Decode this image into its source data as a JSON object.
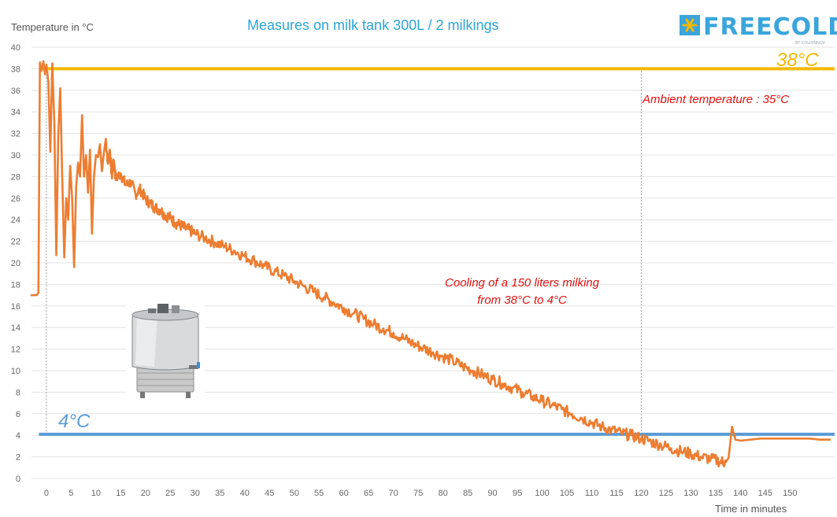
{
  "chart_data": {
    "type": "line",
    "title": "Measures on milk tank 300L / 2 milkings",
    "ylabel": "Temperature in °C",
    "xlabel": "Time in minutes",
    "xlim": [
      -3,
      159
    ],
    "ylim": [
      0,
      40
    ],
    "x_ticks": [
      0,
      5,
      10,
      15,
      20,
      25,
      30,
      35,
      40,
      45,
      50,
      55,
      60,
      65,
      70,
      75,
      80,
      85,
      90,
      95,
      100,
      105,
      110,
      115,
      120,
      125,
      130,
      135,
      140,
      145,
      150
    ],
    "y_ticks": [
      0,
      2,
      4,
      6,
      8,
      10,
      12,
      14,
      16,
      18,
      20,
      22,
      24,
      26,
      28,
      30,
      32,
      34,
      36,
      38,
      40
    ],
    "grid": "horizontal",
    "reference_lines": [
      {
        "label": "38°C",
        "value": 38,
        "color": "#f5b800"
      },
      {
        "label": "4°C",
        "value": 4.1,
        "color": "#5b9bd5"
      }
    ],
    "vertical_markers": [
      0,
      120
    ],
    "series": [
      {
        "color": "#ed7d31",
        "points": [
          [
            -3,
            17
          ],
          [
            -2,
            17
          ],
          [
            -1.6,
            17.2
          ],
          [
            -1.3,
            38.6
          ],
          [
            -1,
            37.8
          ],
          [
            -0.6,
            38.7
          ],
          [
            -0.3,
            37.5
          ],
          [
            0,
            38.4
          ],
          [
            0.4,
            36.8
          ],
          [
            0.8,
            30.3
          ],
          [
            1.2,
            38.5
          ],
          [
            1.6,
            33
          ],
          [
            2,
            20.7
          ],
          [
            2.4,
            31.8
          ],
          [
            2.8,
            36.2
          ],
          [
            3.2,
            28
          ],
          [
            3.6,
            20.5
          ],
          [
            4,
            26
          ],
          [
            4.4,
            24
          ],
          [
            4.8,
            29
          ],
          [
            5.2,
            26
          ],
          [
            5.6,
            19.6
          ],
          [
            6,
            27
          ],
          [
            6.4,
            29.3
          ],
          [
            6.8,
            28
          ],
          [
            7.2,
            33.7
          ],
          [
            7.6,
            28
          ],
          [
            8,
            30
          ],
          [
            8.4,
            26.5
          ],
          [
            8.8,
            30.5
          ],
          [
            9.2,
            22.7
          ],
          [
            9.6,
            28
          ],
          [
            10,
            30
          ],
          [
            10.4,
            29.8
          ],
          [
            10.8,
            31
          ],
          [
            11.2,
            28.5
          ],
          [
            11.6,
            30.2
          ],
          [
            12,
            31.5
          ],
          [
            12.4,
            29.2
          ],
          [
            12.8,
            30.5
          ],
          [
            13.2,
            28
          ],
          [
            13.6,
            29.5
          ],
          [
            14,
            27.8
          ],
          [
            15,
            28.3
          ],
          [
            16,
            27.2
          ],
          [
            17,
            27.5
          ],
          [
            18,
            26.4
          ],
          [
            19,
            26.8
          ],
          [
            20,
            25.9
          ],
          [
            21,
            25.5
          ],
          [
            22,
            25.1
          ],
          [
            23,
            24.9
          ],
          [
            24,
            24.4
          ],
          [
            25,
            24.2
          ],
          [
            26,
            23.7
          ],
          [
            27,
            23.5
          ],
          [
            28,
            23.2
          ],
          [
            29,
            23.0
          ],
          [
            30,
            22.7
          ],
          [
            32,
            22.3
          ],
          [
            34,
            21.9
          ],
          [
            36,
            21.5
          ],
          [
            38,
            21.1
          ],
          [
            40,
            20.6
          ],
          [
            42,
            20.2
          ],
          [
            44,
            19.7
          ],
          [
            46,
            19.2
          ],
          [
            48,
            18.8
          ],
          [
            50,
            18.3
          ],
          [
            52,
            17.8
          ],
          [
            54,
            17.3
          ],
          [
            56,
            16.8
          ],
          [
            58,
            16.3
          ],
          [
            60,
            15.8
          ],
          [
            62,
            15.3
          ],
          [
            64,
            14.8
          ],
          [
            66,
            14.3
          ],
          [
            68,
            13.9
          ],
          [
            70,
            13.5
          ],
          [
            72,
            13.0
          ],
          [
            74,
            12.5
          ],
          [
            76,
            12.1
          ],
          [
            78,
            11.7
          ],
          [
            80,
            11.3
          ],
          [
            82,
            10.9
          ],
          [
            84,
            10.4
          ],
          [
            86,
            10.0
          ],
          [
            88,
            9.6
          ],
          [
            90,
            9.2
          ],
          [
            92,
            8.8
          ],
          [
            94,
            8.4
          ],
          [
            96,
            8.0
          ],
          [
            98,
            7.6
          ],
          [
            100,
            7.2
          ],
          [
            102,
            6.8
          ],
          [
            104,
            6.4
          ],
          [
            106,
            6.0
          ],
          [
            108,
            5.6
          ],
          [
            110,
            5.2
          ],
          [
            112,
            4.8
          ],
          [
            114,
            4.5
          ],
          [
            116,
            4.2
          ],
          [
            118,
            4.0
          ],
          [
            120,
            3.7
          ],
          [
            122,
            3.4
          ],
          [
            124,
            3.1
          ],
          [
            126,
            2.8
          ],
          [
            128,
            2.5
          ],
          [
            130,
            2.3
          ],
          [
            132,
            2.0
          ],
          [
            134,
            1.8
          ],
          [
            136,
            1.6
          ],
          [
            137,
            1.5
          ],
          [
            137.6,
            1.9
          ],
          [
            138,
            3.5
          ],
          [
            138.3,
            4.8
          ],
          [
            138.7,
            4.0
          ],
          [
            139,
            3.6
          ],
          [
            140,
            3.5
          ],
          [
            142,
            3.6
          ],
          [
            144,
            3.7
          ],
          [
            146,
            3.7
          ],
          [
            148,
            3.7
          ],
          [
            150,
            3.7
          ],
          [
            152,
            3.7
          ],
          [
            154,
            3.7
          ],
          [
            156,
            3.6
          ],
          [
            158,
            3.6
          ]
        ]
      }
    ],
    "annotations": [
      "Ambient temperature : 35°C",
      "Cooling of a 150 liters milking",
      "from 38°C to 4°C"
    ]
  },
  "logo": {
    "text": "FREECOLD",
    "subtext": "BY COLDINNOV"
  },
  "colors": {
    "grid": "#e3e3e3",
    "series": "#ed7d31",
    "line38": "#f5b800",
    "line4": "#5b9bd5",
    "title": "#2aa6d8",
    "annotation": "#e01010"
  }
}
